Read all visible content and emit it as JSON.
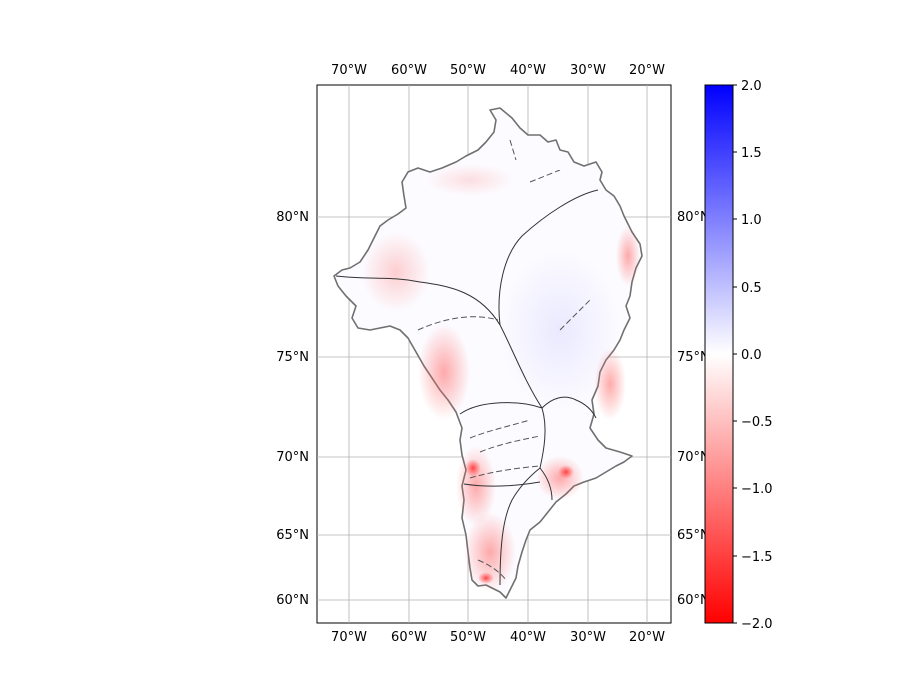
{
  "map": {
    "lon_labels": [
      "70°W",
      "60°W",
      "50°W",
      "40°W",
      "30°W",
      "20°W"
    ],
    "lat_labels": [
      "80°N",
      "75°N",
      "70°N",
      "65°N",
      "60°N"
    ],
    "grid": true,
    "gridline_color": "#b0b0b0",
    "coastline_color": "#707070",
    "basin_line_color": "#333333",
    "icon": "greenland-region-map"
  },
  "colorbar": {
    "min": -2.0,
    "max": 2.0,
    "tick_labels": [
      "2.0",
      "1.5",
      "1.0",
      "0.5",
      "0.0",
      "−0.5",
      "−1.0",
      "−1.5",
      "−2.0"
    ],
    "colors": {
      "top": "#0000ff",
      "middle": "#ffffff",
      "bottom": "#ff0000"
    }
  }
}
